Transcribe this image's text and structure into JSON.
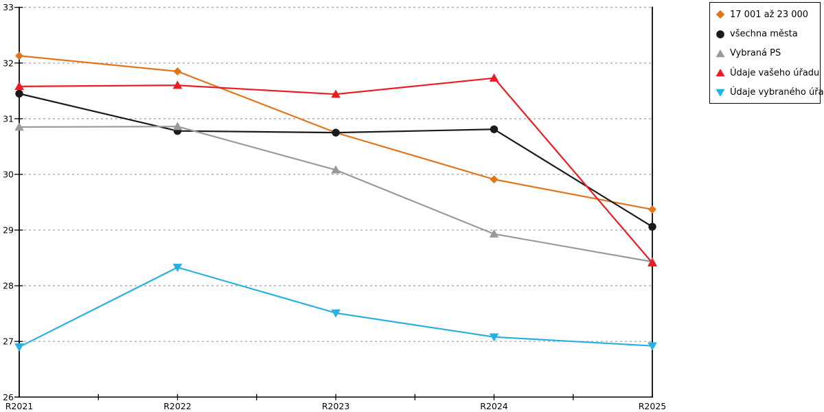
{
  "chart_data": {
    "type": "line",
    "title": "",
    "xlabel": "",
    "ylabel": "",
    "categories": [
      "R2021",
      "R2022",
      "R2023",
      "R2024",
      "R2025"
    ],
    "series": [
      {
        "name": "17 001 až 23 000",
        "color": "#E0751C",
        "marker": "diamond",
        "values": [
          32.13,
          31.85,
          30.75,
          29.91,
          29.37
        ]
      },
      {
        "name": "všechna města",
        "color": "#1A1A1A",
        "marker": "circle",
        "values": [
          31.45,
          30.78,
          30.75,
          30.81,
          29.06
        ]
      },
      {
        "name": "Vybraná PS",
        "color": "#9A9A9A",
        "marker": "triangle-up",
        "values": [
          30.85,
          30.86,
          30.08,
          28.93,
          28.43
        ]
      },
      {
        "name": "Údaje vašeho úřadu",
        "color": "#EC1C22",
        "marker": "triangle-up",
        "values": [
          31.58,
          31.6,
          31.44,
          31.73,
          28.41
        ]
      },
      {
        "name": "Údaje vybraného úřadu",
        "color": "#29B0E2",
        "marker": "triangle-down",
        "values": [
          26.9,
          28.33,
          27.51,
          27.08,
          26.92
        ]
      }
    ],
    "ylim": [
      26,
      33
    ],
    "ytick_step": 1,
    "ytick_labels": [
      "26",
      "27",
      "28",
      "29",
      "30",
      "31",
      "32",
      "33"
    ],
    "grid": "horizontal-dotted",
    "legend_position": "top-right",
    "axis_color": "#000000",
    "grid_color": "#ABABAB",
    "background": "#FFFFFF"
  }
}
